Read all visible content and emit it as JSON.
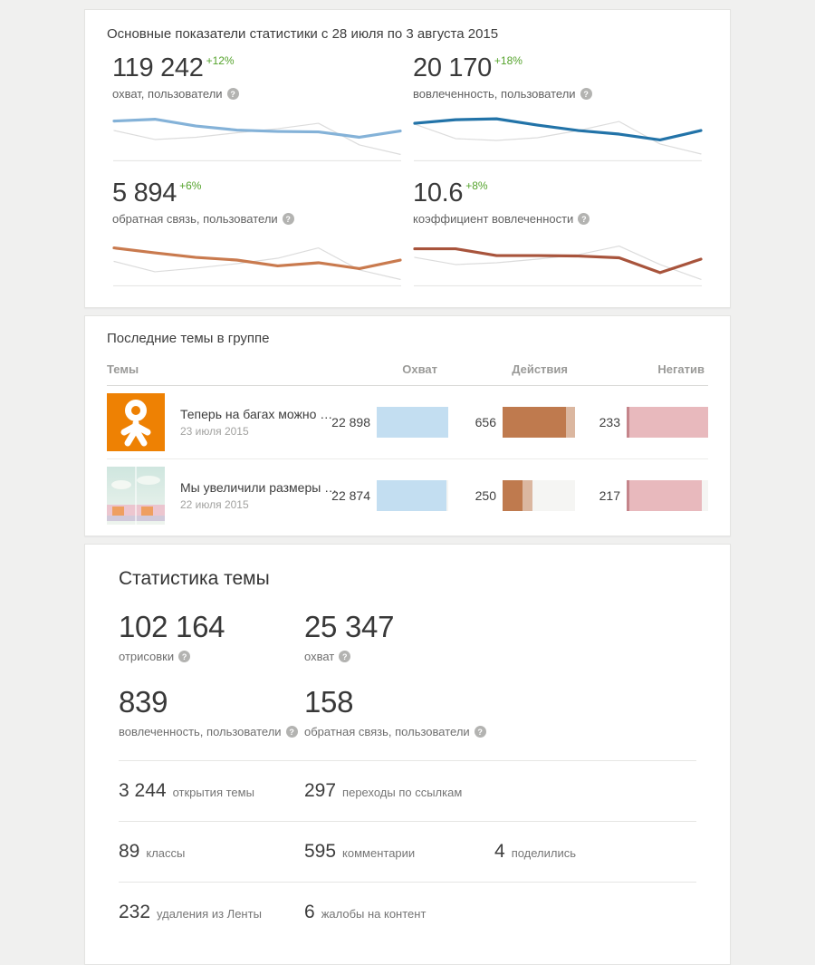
{
  "overview": {
    "title": "Основные показатели статистики с 28 июля по 3 августа 2015",
    "metrics": [
      {
        "value": "119 242",
        "delta": "+12%",
        "label": "охват, пользователи"
      },
      {
        "value": "20 170",
        "delta": "+18%",
        "label": "вовлеченность, пользователи"
      },
      {
        "value": "5 894",
        "delta": "+6%",
        "label": "обратная связь, пользователи"
      },
      {
        "value": "10.6",
        "delta": "+8%",
        "label": "коэффициент вовлеченности"
      }
    ]
  },
  "topics": {
    "title": "Последние темы в группе",
    "columns": [
      "Темы",
      "Охват",
      "Действия",
      "Негатив"
    ],
    "rows": [
      {
        "title": "Теперь на багах можно …",
        "date": "23 июля 2015",
        "reach": "22 898",
        "actions": "656",
        "negative": "233",
        "bars": {
          "reach": 1.0,
          "actions_dark": 0.875,
          "actions_light": 0.125,
          "negative_edge": 0.03,
          "negative": 0.97
        }
      },
      {
        "title": "Мы увеличили размеры …",
        "date": "22 июля 2015",
        "reach": "22 874",
        "actions": "250",
        "negative": "217",
        "bars": {
          "reach": 0.975,
          "actions_dark": 0.28,
          "actions_light": 0.13,
          "negative_edge": 0.03,
          "negative": 0.89
        }
      }
    ]
  },
  "topic_stats": {
    "title": "Статистика темы",
    "big": [
      {
        "value": "102 164",
        "label": "отрисовки"
      },
      {
        "value": "25 347",
        "label": "охват"
      },
      {
        "value": "839",
        "label": "вовлеченность, пользователи"
      },
      {
        "value": "158",
        "label": "обратная связь, пользователи"
      }
    ],
    "rows": [
      [
        {
          "value": "3 244",
          "label": "открытия темы"
        },
        {
          "value": "297",
          "label": "переходы по ссылкам"
        }
      ],
      [
        {
          "value": "89",
          "label": "классы"
        },
        {
          "value": "595",
          "label": "комментарии"
        },
        {
          "value": "4",
          "label": "поделились"
        }
      ],
      [
        {
          "value": "232",
          "label": "удаления из Ленты"
        },
        {
          "value": "6",
          "label": "жалобы на контент"
        }
      ]
    ]
  },
  "colors": {
    "page_bg": "#f0f0ef",
    "delta_green": "#55a32c",
    "bar_reach": "#c3def1",
    "bar_actions_dark": "#bf7a4e",
    "bar_actions_light": "#dbb7a0",
    "bar_negative": "#e8b9bd",
    "bar_track": "#f5f5f3",
    "ok_logo_orange": "#ee8103"
  },
  "chart_data": [
    {
      "type": "line",
      "title": "охват, пользователи — спарклайн за неделю",
      "ylim": [
        0,
        100
      ],
      "grid": false,
      "legend_position": "none",
      "baseline_color": "#e3e3e1",
      "series": [
        {
          "name": "main",
          "color": "#84b2d8",
          "stroke_width": 3.2,
          "values": [
            79,
            83,
            68,
            59,
            56,
            55,
            43,
            57
          ]
        },
        {
          "name": "reference",
          "color": "#dcdcdc",
          "stroke_width": 1.2,
          "values": [
            58,
            38,
            43,
            53,
            62,
            74,
            26,
            5
          ]
        }
      ]
    },
    {
      "type": "line",
      "title": "вовлеченность, пользователи — спарклайн за неделю",
      "ylim": [
        0,
        100
      ],
      "grid": false,
      "legend_position": "none",
      "baseline_color": "#e3e3e1",
      "series": [
        {
          "name": "main",
          "color": "#2273a8",
          "stroke_width": 3.2,
          "values": [
            74,
            82,
            84,
            70,
            58,
            50,
            37,
            58
          ]
        },
        {
          "name": "reference",
          "color": "#dcdcdc",
          "stroke_width": 1.2,
          "values": [
            72,
            40,
            36,
            42,
            58,
            78,
            28,
            6
          ]
        }
      ]
    },
    {
      "type": "line",
      "title": "обратная связь, пользователи — спарклайн за неделю",
      "ylim": [
        0,
        100
      ],
      "grid": false,
      "legend_position": "none",
      "baseline_color": "#e3e3e1",
      "series": [
        {
          "name": "main",
          "color": "#c97a4e",
          "stroke_width": 3.2,
          "values": [
            75,
            64,
            54,
            48,
            35,
            42,
            29,
            48
          ]
        },
        {
          "name": "reference",
          "color": "#dcdcdc",
          "stroke_width": 1.2,
          "values": [
            45,
            22,
            30,
            40,
            52,
            75,
            26,
            5
          ]
        }
      ]
    },
    {
      "type": "line",
      "title": "коэффициент вовлеченности — спарклайн за неделю",
      "ylim": [
        0,
        100
      ],
      "grid": false,
      "legend_position": "none",
      "baseline_color": "#e3e3e1",
      "series": [
        {
          "name": "main",
          "color": "#a8543c",
          "stroke_width": 3.2,
          "values": [
            73,
            73,
            58,
            58,
            57,
            53,
            20,
            50
          ]
        },
        {
          "name": "reference",
          "color": "#dcdcdc",
          "stroke_width": 1.2,
          "values": [
            54,
            38,
            42,
            50,
            60,
            79,
            38,
            5
          ]
        }
      ]
    },
    {
      "type": "bar",
      "title": "Последние темы в группе — показатели",
      "categories": [
        "Теперь на багах можно …",
        "Мы увеличили размеры …"
      ],
      "series": [
        {
          "name": "Охват",
          "values": [
            22898,
            22874
          ]
        },
        {
          "name": "Действия",
          "values": [
            656,
            250
          ]
        },
        {
          "name": "Негатив",
          "values": [
            233,
            217
          ]
        }
      ]
    }
  ]
}
